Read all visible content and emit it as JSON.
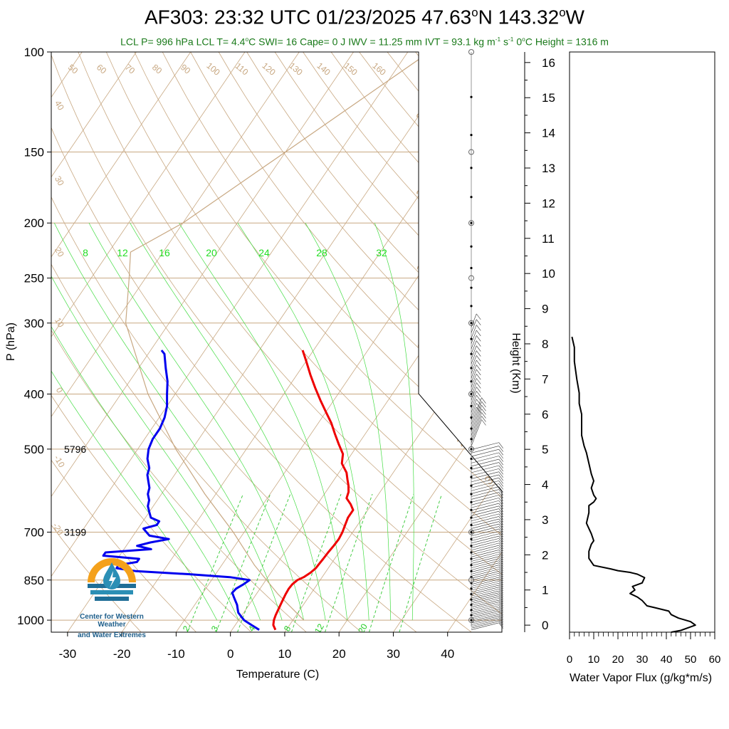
{
  "header": {
    "title_parts": [
      "AF303: 23:32 UTC 01/23/2025  47.63",
      "o",
      "N 143.32",
      "o",
      "W"
    ],
    "subtitle_parts": [
      "LCL P= 996 hPa  LCL T= 4.4",
      "o",
      "C  SWI= 16  Cape= 0 J  IWV = 11.25 mm  IVT = 93.1 kg m",
      "-1",
      " s",
      "-1",
      "  0",
      "o",
      "C Height = 1316 m"
    ]
  },
  "logo": {
    "line1": "Center for Western Weather",
    "line2": "and Water Extremes",
    "colors": {
      "orange": "#f4a11c",
      "blue": "#1f6e97",
      "teal": "#2b8fb5"
    }
  },
  "chart_data": [
    {
      "type": "skewt",
      "xlabel": "Temperature (C)",
      "ylabel": "P (hPa)",
      "xlim": [
        -33,
        50
      ],
      "ylim": [
        1050,
        100
      ],
      "xticks": [
        -30,
        -20,
        -10,
        0,
        10,
        20,
        30,
        40
      ],
      "yticks": [
        100,
        150,
        200,
        250,
        300,
        400,
        500,
        700,
        850,
        1000
      ],
      "ytick_labels": [
        "100",
        "150",
        "200",
        "250",
        "300",
        "400",
        "500",
        "700",
        "850",
        "1000"
      ],
      "height_annotations": [
        {
          "p": 500,
          "label": "5796"
        },
        {
          "p": 700,
          "label": "3199"
        }
      ],
      "dry_adiabat_labels": [
        "50",
        "60",
        "70",
        "80",
        "90",
        "100",
        "110",
        "120",
        "130",
        "140",
        "150",
        "160"
      ],
      "moist_adiabat_labels": [
        "8",
        "12",
        "16",
        "20",
        "24",
        "28",
        "32"
      ],
      "isotherm_labels_left": [
        "40",
        "30",
        "20",
        "10",
        "0",
        "-10",
        "-20"
      ],
      "isotherm_labels_right": [
        "30",
        "20",
        "10",
        "0",
        "10",
        "20",
        "30"
      ],
      "mixing_ratio_labels": [
        "2",
        "3",
        "4",
        "8",
        "12",
        "20"
      ],
      "colors": {
        "temperature": "#ee0000",
        "dewpoint": "#0000ee",
        "isotherm": "#c8a882",
        "moist": "#44dd44",
        "mixing": "#44cc44",
        "parcel": "#c8a882"
      },
      "temperature": {
        "name": "Temperature",
        "p": [
          1040,
          1020,
          1000,
          980,
          960,
          940,
          920,
          900,
          880,
          865,
          850,
          840,
          825,
          810,
          795,
          780,
          760,
          740,
          720,
          700,
          680,
          660,
          640,
          625,
          610,
          595,
          580,
          565,
          550,
          530,
          510,
          490,
          470,
          450,
          430,
          410,
          390,
          370,
          350,
          335
        ],
        "t": [
          8.0,
          7.0,
          6.5,
          6.2,
          6.0,
          5.8,
          5.6,
          5.4,
          5.3,
          5.4,
          5.8,
          6.6,
          7.3,
          7.7,
          7.8,
          7.9,
          8.0,
          8.2,
          8.3,
          8.1,
          7.7,
          7.3,
          7.3,
          6.1,
          4.6,
          4.2,
          3.4,
          2.4,
          1.4,
          -0.6,
          -1.6,
          -3.6,
          -5.6,
          -7.6,
          -10.0,
          -12.5,
          -15.0,
          -17.5,
          -20.0,
          -22.0
        ]
      },
      "dewpoint": {
        "name": "Dewpoint",
        "p": [
          1040,
          1020,
          1000,
          985,
          970,
          955,
          940,
          925,
          910,
          895,
          880,
          865,
          850,
          840,
          830,
          820,
          810,
          800,
          790,
          780,
          770,
          760,
          750,
          740,
          730,
          720,
          710,
          700,
          690,
          680,
          670,
          660,
          645,
          630,
          615,
          600,
          585,
          570,
          555,
          540,
          520,
          500,
          480,
          460,
          440,
          420,
          400,
          380,
          360,
          340,
          335
        ],
        "td": [
          5.0,
          3.0,
          1.0,
          0.0,
          -1.0,
          -1.6,
          -2.2,
          -3.0,
          -3.8,
          -4.6,
          -4.4,
          -3.6,
          -3.0,
          -7.0,
          -15.0,
          -25.0,
          -29.0,
          -29.0,
          -26.0,
          -26.0,
          -33.0,
          -33.0,
          -25.0,
          -28.0,
          -26.0,
          -23.0,
          -27.0,
          -28.0,
          -29.0,
          -27.0,
          -27.0,
          -29.0,
          -30.0,
          -31.0,
          -31.5,
          -32.5,
          -33.0,
          -34.0,
          -35.0,
          -35.5,
          -37.0,
          -38.0,
          -38.5,
          -38.5,
          -39.0,
          -40.0,
          -41.5,
          -43.0,
          -45.0,
          -47.0,
          -48.0
        ]
      },
      "parcel": {
        "p": [
          1000,
          900,
          800,
          700,
          600,
          500,
          400,
          300,
          250,
          225,
          200,
          150,
          100
        ],
        "t": [
          12.0,
          4.0,
          -4.0,
          -12.0,
          -22.0,
          -33.0,
          -45.0,
          -58.0,
          -63.0,
          -66.0,
          -60.0,
          -50.0,
          -36.0
        ]
      },
      "tropopause_kink_p": 225
    },
    {
      "type": "profile",
      "xlabel": "Water Vapor Flux (g/kg*m/s)",
      "ylabel": "Height (Km)",
      "xlim": [
        0,
        60
      ],
      "ylim": [
        -0.2,
        16.3
      ],
      "xticks": [
        0,
        10,
        20,
        30,
        40,
        50,
        60
      ],
      "yticks": [
        0,
        1,
        2,
        3,
        4,
        5,
        6,
        7,
        8,
        9,
        10,
        11,
        12,
        13,
        14,
        15,
        16
      ],
      "series": [
        {
          "x": [
            42,
            46,
            50,
            52,
            50,
            45,
            42,
            41,
            38,
            35,
            32,
            30,
            28,
            25,
            27,
            26,
            30,
            31,
            28,
            25,
            20,
            17,
            10,
            8,
            8,
            9,
            10,
            9,
            7,
            8,
            8,
            10,
            11,
            10,
            9,
            10,
            9,
            8,
            7,
            6,
            5,
            5,
            5,
            4,
            4,
            3,
            2,
            2,
            1
          ],
          "h": [
            -0.2,
            -0.15,
            -0.05,
            0.0,
            0.1,
            0.2,
            0.3,
            0.4,
            0.45,
            0.5,
            0.55,
            0.7,
            0.8,
            0.9,
            1.0,
            1.1,
            1.2,
            1.35,
            1.45,
            1.5,
            1.55,
            1.6,
            1.7,
            1.9,
            2.1,
            2.3,
            2.4,
            2.6,
            2.9,
            3.2,
            3.4,
            3.5,
            3.6,
            3.7,
            3.9,
            4.1,
            4.3,
            4.6,
            4.9,
            5.1,
            5.4,
            5.7,
            6.0,
            6.3,
            6.6,
            7.0,
            7.5,
            7.9,
            8.2
          ]
        }
      ]
    }
  ]
}
